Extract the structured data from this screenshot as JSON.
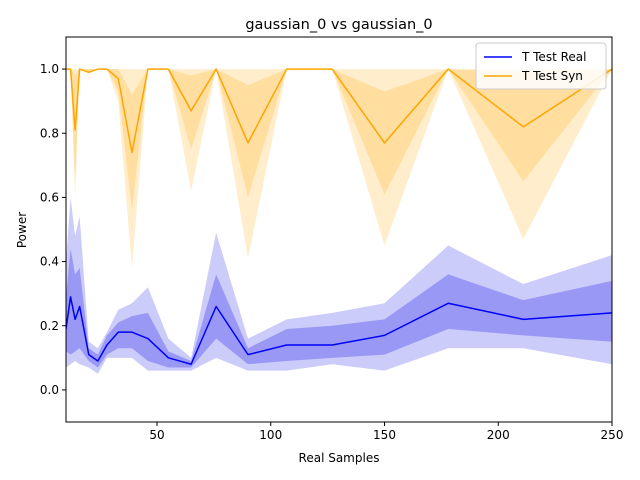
{
  "chart_data": {
    "type": "line",
    "title": "gaussian_0 vs gaussian_0",
    "xlabel": "Real Samples",
    "ylabel": "Power",
    "xlim": [
      10,
      250
    ],
    "ylim": [
      -0.1,
      1.1
    ],
    "xticks": [
      50,
      100,
      150,
      200,
      250
    ],
    "yticks": [
      0.0,
      0.2,
      0.4,
      0.6,
      0.8,
      1.0
    ],
    "grid": false,
    "legend_position": "top-right",
    "x": [
      10,
      12,
      14,
      16,
      20,
      24,
      28,
      33,
      39,
      46,
      55,
      65,
      76,
      90,
      107,
      127,
      150,
      178,
      211,
      250
    ],
    "series": [
      {
        "name": "T Test Real",
        "color": "#0000ff",
        "band_inner_color": "#9999f5",
        "band_outer_color": "#ccccfa",
        "values": [
          0.19,
          0.29,
          0.22,
          0.26,
          0.11,
          0.09,
          0.14,
          0.18,
          0.18,
          0.16,
          0.1,
          0.08,
          0.26,
          0.11,
          0.14,
          0.14,
          0.17,
          0.27,
          0.22,
          0.24
        ],
        "inner_lower": [
          0.12,
          0.11,
          0.12,
          0.13,
          0.09,
          0.07,
          0.11,
          0.13,
          0.13,
          0.09,
          0.07,
          0.07,
          0.16,
          0.08,
          0.09,
          0.1,
          0.11,
          0.19,
          0.17,
          0.15
        ],
        "inner_upper": [
          0.29,
          0.44,
          0.36,
          0.38,
          0.13,
          0.11,
          0.17,
          0.21,
          0.23,
          0.24,
          0.12,
          0.09,
          0.36,
          0.13,
          0.19,
          0.2,
          0.22,
          0.36,
          0.28,
          0.34
        ],
        "outer_lower": [
          0.07,
          0.08,
          0.09,
          0.08,
          0.07,
          0.05,
          0.1,
          0.1,
          0.1,
          0.06,
          0.06,
          0.06,
          0.1,
          0.06,
          0.06,
          0.08,
          0.06,
          0.13,
          0.13,
          0.08
        ],
        "outer_upper": [
          0.4,
          0.6,
          0.48,
          0.54,
          0.15,
          0.13,
          0.18,
          0.25,
          0.27,
          0.32,
          0.16,
          0.1,
          0.49,
          0.16,
          0.22,
          0.24,
          0.27,
          0.45,
          0.33,
          0.42
        ]
      },
      {
        "name": "T Test Syn",
        "color": "#ffa500",
        "band_inner_color": "#ffdea0",
        "band_outer_color": "#ffedcc",
        "values": [
          1.0,
          1.0,
          0.81,
          1.0,
          0.99,
          1.0,
          1.0,
          0.97,
          0.74,
          1.0,
          1.0,
          0.87,
          1.0,
          0.77,
          1.0,
          1.0,
          0.77,
          1.0,
          0.82,
          1.0
        ],
        "inner_lower": [
          1.0,
          1.0,
          0.65,
          1.0,
          0.99,
          1.0,
          1.0,
          0.93,
          0.56,
          1.0,
          1.0,
          0.75,
          1.0,
          0.6,
          1.0,
          1.0,
          0.61,
          1.0,
          0.65,
          1.0
        ],
        "inner_upper": [
          1.0,
          1.0,
          0.98,
          1.0,
          1.0,
          1.0,
          1.0,
          1.0,
          0.92,
          1.0,
          1.0,
          0.98,
          1.0,
          0.95,
          1.0,
          1.0,
          0.93,
          1.0,
          0.99,
          1.0
        ],
        "outer_lower": [
          1.0,
          1.0,
          0.6,
          1.0,
          0.99,
          1.0,
          1.0,
          0.9,
          0.38,
          1.0,
          1.0,
          0.62,
          1.0,
          0.41,
          1.0,
          1.0,
          0.45,
          1.0,
          0.47,
          1.0
        ],
        "outer_upper": [
          1.0,
          1.0,
          1.0,
          1.0,
          1.0,
          1.0,
          1.0,
          1.0,
          1.0,
          1.0,
          1.0,
          1.0,
          1.0,
          1.0,
          1.0,
          1.0,
          1.0,
          1.0,
          1.0,
          1.0
        ]
      }
    ]
  }
}
